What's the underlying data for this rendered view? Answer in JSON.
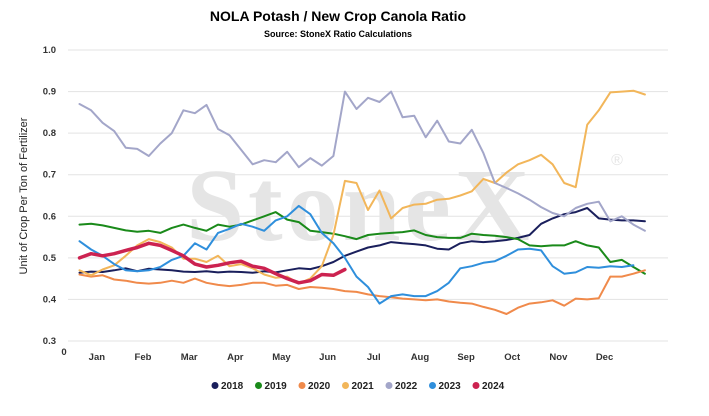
{
  "chart_data": {
    "type": "line",
    "title": "NOLA Potash / New Crop Canola Ratio",
    "subtitle": "Source: StoneX Ratio Calculations",
    "ylabel": "Unit of Crop Per Ton of Fertilizer",
    "xlabel": "",
    "watermark": "StoneX",
    "ylim": [
      0.3,
      1.0
    ],
    "yticks": [
      "0.3",
      "0.4",
      "0.5",
      "0.6",
      "0.7",
      "0.8",
      "0.9",
      "1.0"
    ],
    "x_corner_label": "0",
    "xlim": [
      0,
      52
    ],
    "months": [
      {
        "label": "Jan",
        "pos": 2.5
      },
      {
        "label": "Feb",
        "pos": 6.5
      },
      {
        "label": "Mar",
        "pos": 10.5
      },
      {
        "label": "Apr",
        "pos": 14.5
      },
      {
        "label": "May",
        "pos": 18.5
      },
      {
        "label": "Jun",
        "pos": 22.5
      },
      {
        "label": "Jul",
        "pos": 26.5
      },
      {
        "label": "Aug",
        "pos": 30.5
      },
      {
        "label": "Sep",
        "pos": 34.5
      },
      {
        "label": "Oct",
        "pos": 38.5
      },
      {
        "label": "Nov",
        "pos": 42.5
      },
      {
        "label": "Dec",
        "pos": 46.5
      }
    ],
    "grid": "horizontal",
    "legend_position": "bottom",
    "series": [
      {
        "name": "2018",
        "color": "#1a1f5c",
        "width": 2,
        "x": [
          1,
          2,
          3,
          4,
          5,
          6,
          7,
          8,
          9,
          10,
          11,
          12,
          13,
          14,
          15,
          16,
          17,
          18,
          19,
          20,
          21,
          22,
          23,
          24,
          25,
          26,
          27,
          28,
          29,
          30,
          31,
          32,
          33,
          34,
          35,
          36,
          37,
          38,
          39,
          40,
          41,
          42,
          43,
          44,
          45,
          46,
          47,
          48,
          49,
          50
        ],
        "y": [
          0.464,
          0.467,
          0.466,
          0.47,
          0.475,
          0.468,
          0.474,
          0.472,
          0.47,
          0.467,
          0.466,
          0.468,
          0.465,
          0.467,
          0.466,
          0.464,
          0.468,
          0.465,
          0.47,
          0.475,
          0.473,
          0.48,
          0.49,
          0.505,
          0.515,
          0.525,
          0.53,
          0.538,
          0.535,
          0.533,
          0.53,
          0.522,
          0.52,
          0.535,
          0.54,
          0.538,
          0.54,
          0.543,
          0.548,
          0.555,
          0.582,
          0.595,
          0.605,
          0.61,
          0.62,
          0.595,
          0.592,
          0.59,
          0.59,
          0.588
        ]
      },
      {
        "name": "2019",
        "color": "#1a8a1a",
        "width": 2,
        "x": [
          1,
          2,
          3,
          4,
          5,
          6,
          7,
          8,
          9,
          10,
          11,
          12,
          13,
          14,
          15,
          16,
          17,
          18,
          19,
          20,
          21,
          22,
          23,
          24,
          25,
          26,
          27,
          28,
          29,
          30,
          31,
          32,
          33,
          34,
          35,
          36,
          37,
          38,
          39,
          40,
          41,
          42,
          43,
          44,
          45,
          46,
          47,
          48,
          49,
          50
        ],
        "y": [
          0.58,
          0.582,
          0.578,
          0.572,
          0.566,
          0.563,
          0.565,
          0.56,
          0.572,
          0.58,
          0.572,
          0.565,
          0.58,
          0.575,
          0.58,
          0.59,
          0.6,
          0.61,
          0.592,
          0.586,
          0.565,
          0.562,
          0.558,
          0.552,
          0.545,
          0.555,
          0.558,
          0.56,
          0.562,
          0.566,
          0.555,
          0.55,
          0.548,
          0.548,
          0.558,
          0.555,
          0.553,
          0.55,
          0.545,
          0.53,
          0.528,
          0.53,
          0.53,
          0.54,
          0.53,
          0.525,
          0.49,
          0.495,
          0.478,
          0.462
        ]
      },
      {
        "name": "2020",
        "color": "#f08a4b",
        "width": 2,
        "x": [
          1,
          2,
          3,
          4,
          5,
          6,
          7,
          8,
          9,
          10,
          11,
          12,
          13,
          14,
          15,
          16,
          17,
          18,
          19,
          20,
          21,
          22,
          23,
          24,
          25,
          26,
          27,
          28,
          29,
          30,
          31,
          32,
          33,
          34,
          35,
          36,
          37,
          38,
          39,
          40,
          41,
          42,
          43,
          44,
          45,
          46,
          47,
          48,
          49,
          50
        ],
        "y": [
          0.46,
          0.455,
          0.458,
          0.448,
          0.445,
          0.44,
          0.438,
          0.44,
          0.445,
          0.44,
          0.45,
          0.44,
          0.435,
          0.432,
          0.435,
          0.44,
          0.44,
          0.433,
          0.435,
          0.425,
          0.43,
          0.428,
          0.425,
          0.42,
          0.418,
          0.412,
          0.408,
          0.405,
          0.402,
          0.4,
          0.398,
          0.4,
          0.395,
          0.392,
          0.39,
          0.382,
          0.375,
          0.365,
          0.38,
          0.39,
          0.393,
          0.398,
          0.385,
          0.402,
          0.4,
          0.403,
          0.455,
          0.455,
          0.462,
          0.47
        ]
      },
      {
        "name": "2021",
        "color": "#f2b65a",
        "width": 2,
        "x": [
          1,
          2,
          3,
          4,
          5,
          6,
          7,
          8,
          9,
          10,
          11,
          12,
          13,
          14,
          15,
          16,
          17,
          18,
          19,
          20,
          21,
          22,
          23,
          24,
          25,
          26,
          27,
          28,
          29,
          30,
          31,
          32,
          33,
          34,
          35,
          36,
          37,
          38,
          39,
          40,
          41,
          42,
          43,
          44,
          45,
          46,
          47,
          48,
          49,
          50
        ],
        "y": [
          0.47,
          0.458,
          0.472,
          0.482,
          0.505,
          0.53,
          0.545,
          0.538,
          0.525,
          0.498,
          0.498,
          0.49,
          0.505,
          0.48,
          0.485,
          0.475,
          0.46,
          0.452,
          0.455,
          0.438,
          0.45,
          0.48,
          0.555,
          0.685,
          0.68,
          0.615,
          0.662,
          0.595,
          0.62,
          0.628,
          0.63,
          0.64,
          0.642,
          0.65,
          0.66,
          0.69,
          0.68,
          0.705,
          0.725,
          0.735,
          0.748,
          0.725,
          0.68,
          0.67,
          0.82,
          0.855,
          0.898,
          0.9,
          0.902,
          0.893
        ]
      },
      {
        "name": "2022",
        "color": "#a3a6c9",
        "width": 2,
        "x": [
          1,
          2,
          3,
          4,
          5,
          6,
          7,
          8,
          9,
          10,
          11,
          12,
          13,
          14,
          15,
          16,
          17,
          18,
          19,
          20,
          21,
          22,
          23,
          24,
          25,
          26,
          27,
          28,
          29,
          30,
          31,
          32,
          33,
          34,
          35,
          36,
          37,
          38,
          39,
          40,
          41,
          42,
          43,
          44,
          45,
          46,
          47,
          48,
          49,
          50
        ],
        "y": [
          0.87,
          0.855,
          0.825,
          0.805,
          0.765,
          0.762,
          0.745,
          0.775,
          0.8,
          0.855,
          0.848,
          0.868,
          0.81,
          0.795,
          0.76,
          0.725,
          0.735,
          0.73,
          0.755,
          0.718,
          0.74,
          0.722,
          0.745,
          0.9,
          0.858,
          0.885,
          0.875,
          0.9,
          0.838,
          0.842,
          0.79,
          0.83,
          0.78,
          0.775,
          0.808,
          0.752,
          0.68,
          0.668,
          0.655,
          0.64,
          0.622,
          0.608,
          0.6,
          0.62,
          0.63,
          0.635,
          0.588,
          0.6,
          0.58,
          0.565
        ]
      },
      {
        "name": "2023",
        "color": "#2f8fdc",
        "width": 2,
        "x": [
          1,
          2,
          3,
          4,
          5,
          6,
          7,
          8,
          9,
          10,
          11,
          12,
          13,
          14,
          15,
          16,
          17,
          18,
          19,
          20,
          21,
          22,
          23,
          24,
          25,
          26,
          27,
          28,
          29,
          30,
          31,
          32,
          33,
          34,
          35,
          36,
          37,
          38,
          39,
          40,
          41,
          42,
          43,
          44,
          45,
          46,
          47,
          48,
          49
        ],
        "y": [
          0.54,
          0.52,
          0.505,
          0.485,
          0.47,
          0.468,
          0.47,
          0.478,
          0.495,
          0.505,
          0.535,
          0.52,
          0.56,
          0.57,
          0.582,
          0.575,
          0.565,
          0.59,
          0.6,
          0.625,
          0.605,
          0.56,
          0.535,
          0.5,
          0.455,
          0.43,
          0.39,
          0.408,
          0.412,
          0.408,
          0.408,
          0.42,
          0.44,
          0.475,
          0.48,
          0.488,
          0.492,
          0.505,
          0.52,
          0.522,
          0.518,
          0.48,
          0.462,
          0.465,
          0.478,
          0.476,
          0.48,
          0.478,
          0.482
        ]
      },
      {
        "name": "2024",
        "color": "#cc2250",
        "width": 3.5,
        "x": [
          1,
          2,
          3,
          4,
          5,
          6,
          7,
          8,
          9,
          10,
          11,
          12,
          13,
          14,
          15,
          16,
          17,
          18,
          19,
          20,
          21,
          22,
          23,
          24
        ],
        "y": [
          0.5,
          0.51,
          0.505,
          0.51,
          0.518,
          0.525,
          0.535,
          0.53,
          0.518,
          0.505,
          0.485,
          0.478,
          0.482,
          0.488,
          0.492,
          0.48,
          0.475,
          0.462,
          0.45,
          0.44,
          0.445,
          0.46,
          0.458,
          0.472
        ]
      }
    ]
  }
}
